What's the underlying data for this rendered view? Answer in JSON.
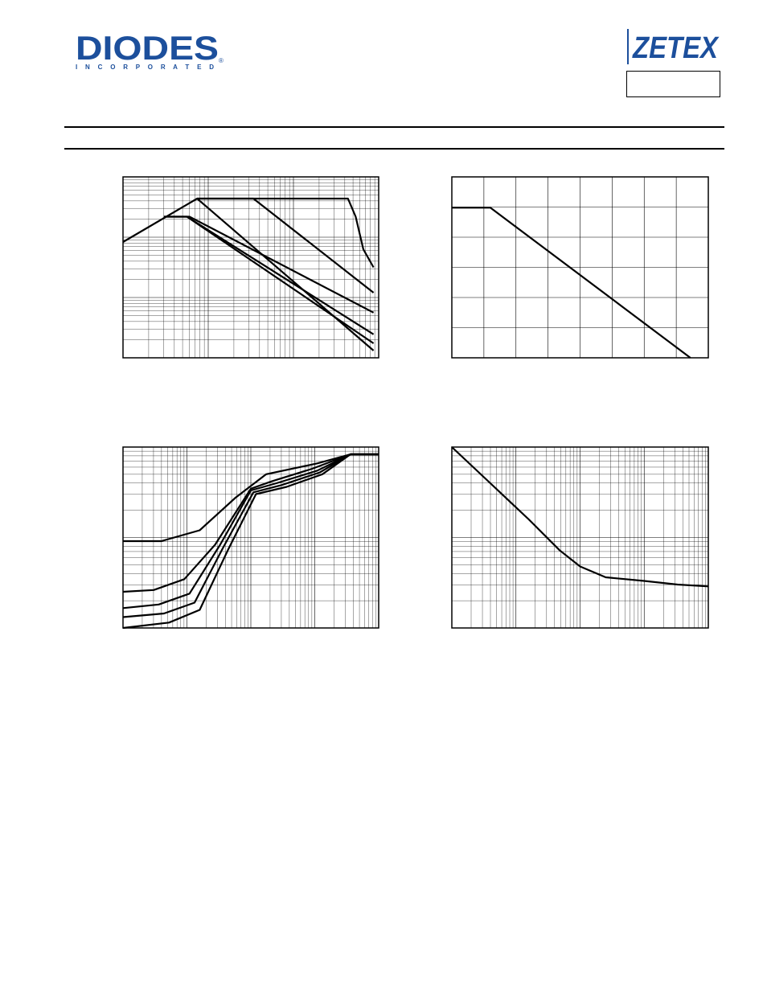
{
  "header": {
    "left_logo": "DIODES",
    "left_logo_sub": "I N C O R P O R A T E D",
    "right_logo": "ZETEX"
  },
  "chart_data": [
    {
      "type": "line",
      "id": "safe-operating-area",
      "xlim": [
        0,
        1
      ],
      "ylim": [
        0,
        1
      ],
      "x_scale": "log",
      "y_scale": "log",
      "grid": true,
      "series": [
        {
          "values": [
            [
              0.0,
              0.64
            ],
            [
              0.29,
              0.88
            ],
            [
              0.88,
              0.88
            ],
            [
              0.91,
              0.78
            ],
            [
              0.94,
              0.6
            ],
            [
              0.98,
              0.5
            ]
          ]
        },
        {
          "values": [
            [
              0.29,
              0.88
            ],
            [
              0.51,
              0.88
            ],
            [
              0.98,
              0.36
            ]
          ]
        },
        {
          "values": [
            [
              0.16,
              0.78
            ],
            [
              0.26,
              0.78
            ],
            [
              0.98,
              0.25
            ]
          ]
        },
        {
          "values": [
            [
              0.16,
              0.78
            ],
            [
              0.25,
              0.78
            ],
            [
              0.98,
              0.13
            ]
          ]
        },
        {
          "values": [
            [
              0.25,
              0.78
            ],
            [
              0.98,
              0.08
            ]
          ]
        },
        {
          "values": [
            [
              0.29,
              0.88
            ],
            [
              0.98,
              0.04
            ]
          ]
        }
      ]
    },
    {
      "type": "line",
      "id": "derating",
      "xlim": [
        0,
        1
      ],
      "ylim": [
        0,
        1
      ],
      "grid": true,
      "series": [
        {
          "values": [
            [
              0.0,
              0.83
            ],
            [
              0.15,
              0.83
            ],
            [
              0.93,
              0.0
            ]
          ]
        }
      ]
    },
    {
      "type": "line",
      "id": "transient-thermal",
      "xlim": [
        0,
        1
      ],
      "ylim": [
        0,
        1
      ],
      "x_scale": "log",
      "y_scale": "log",
      "grid": true,
      "series": [
        {
          "values": [
            [
              0.0,
              0.48
            ],
            [
              0.15,
              0.48
            ],
            [
              0.3,
              0.54
            ],
            [
              0.44,
              0.72
            ],
            [
              0.56,
              0.85
            ],
            [
              0.76,
              0.91
            ],
            [
              0.89,
              0.96
            ],
            [
              1.0,
              0.96
            ]
          ]
        },
        {
          "values": [
            [
              0.0,
              0.2
            ],
            [
              0.12,
              0.21
            ],
            [
              0.24,
              0.27
            ],
            [
              0.36,
              0.46
            ],
            [
              0.5,
              0.77
            ],
            [
              0.58,
              0.81
            ],
            [
              0.74,
              0.88
            ],
            [
              0.89,
              0.96
            ],
            [
              1.0,
              0.96
            ]
          ]
        },
        {
          "values": [
            [
              0.0,
              0.11
            ],
            [
              0.14,
              0.13
            ],
            [
              0.26,
              0.19
            ],
            [
              0.38,
              0.46
            ],
            [
              0.5,
              0.76
            ],
            [
              0.6,
              0.8
            ],
            [
              0.76,
              0.87
            ],
            [
              0.89,
              0.96
            ],
            [
              1.0,
              0.96
            ]
          ]
        },
        {
          "values": [
            [
              0.0,
              0.06
            ],
            [
              0.16,
              0.08
            ],
            [
              0.28,
              0.14
            ],
            [
              0.39,
              0.44
            ],
            [
              0.51,
              0.75
            ],
            [
              0.62,
              0.79
            ],
            [
              0.77,
              0.86
            ],
            [
              0.89,
              0.96
            ],
            [
              1.0,
              0.96
            ]
          ]
        },
        {
          "values": [
            [
              0.0,
              0.0
            ],
            [
              0.18,
              0.03
            ],
            [
              0.3,
              0.1
            ],
            [
              0.41,
              0.43
            ],
            [
              0.52,
              0.74
            ],
            [
              0.64,
              0.78
            ],
            [
              0.78,
              0.85
            ],
            [
              0.89,
              0.96
            ],
            [
              1.0,
              0.96
            ]
          ]
        }
      ]
    },
    {
      "type": "line",
      "id": "pulse-power",
      "xlim": [
        0,
        1
      ],
      "ylim": [
        0,
        1
      ],
      "x_scale": "log",
      "y_scale": "log",
      "grid": true,
      "series": [
        {
          "values": [
            [
              0.0,
              1.0
            ],
            [
              0.15,
              0.8
            ],
            [
              0.3,
              0.6
            ],
            [
              0.42,
              0.43
            ],
            [
              0.5,
              0.34
            ],
            [
              0.6,
              0.28
            ],
            [
              0.75,
              0.26
            ],
            [
              0.88,
              0.24
            ],
            [
              1.0,
              0.23
            ]
          ]
        }
      ]
    }
  ]
}
